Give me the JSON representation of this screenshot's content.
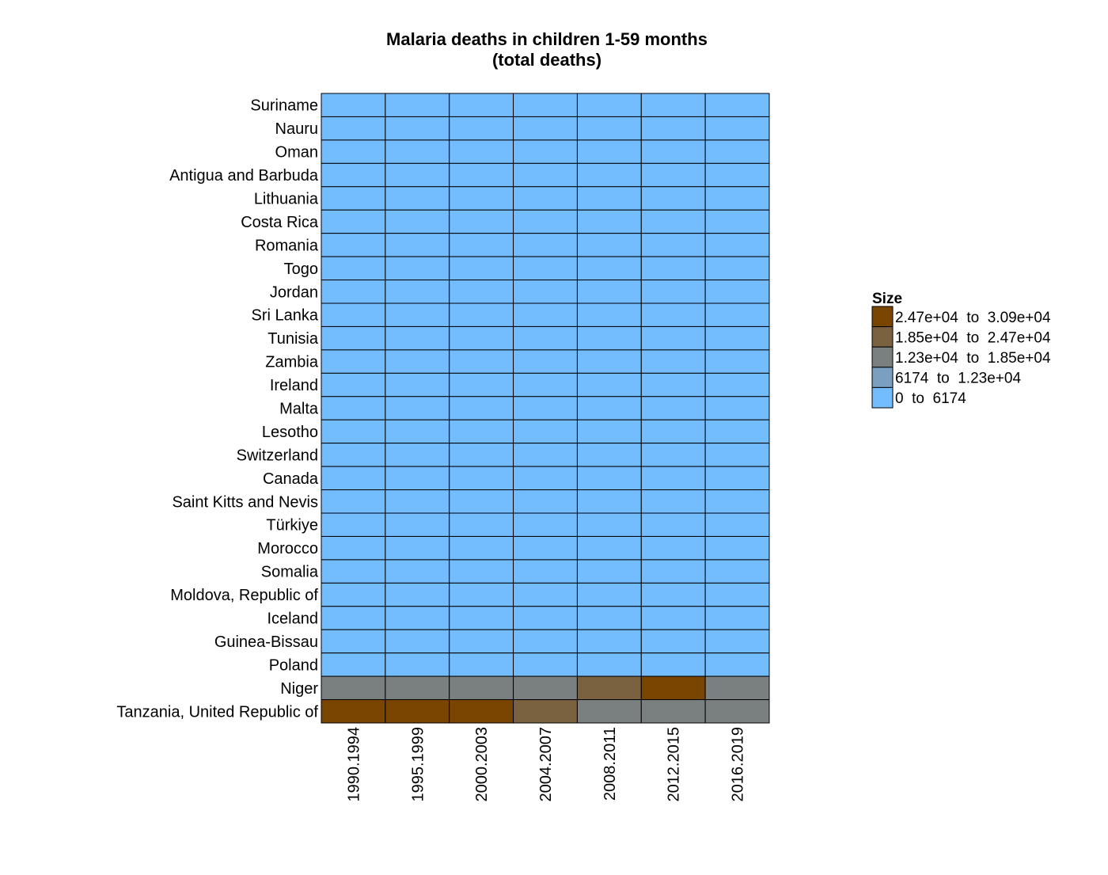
{
  "chart_data": {
    "type": "heatmap",
    "title": "Malaria deaths in children 1-59 months",
    "subtitle": "(total deaths)",
    "columns": [
      "1990.1994",
      "1995.1999",
      "2000.2003",
      "2004.2007",
      "2008.2011",
      "2012.2015",
      "2016.2019"
    ],
    "rows": [
      "Suriname",
      "Nauru",
      "Oman",
      "Antigua and Barbuda",
      "Lithuania",
      "Costa Rica",
      "Romania",
      "Togo",
      "Jordan",
      "Sri Lanka",
      "Tunisia",
      "Zambia",
      "Ireland",
      "Malta",
      "Lesotho",
      "Switzerland",
      "Canada",
      "Saint Kitts and Nevis",
      "Türkiye",
      "Morocco",
      "Somalia",
      "Moldova, Republic of",
      "Iceland",
      "Guinea-Bissau",
      "Poland",
      "Niger",
      "Tanzania, United Republic of"
    ],
    "cell_bins": [
      [
        0,
        0,
        0,
        0,
        0,
        0,
        0
      ],
      [
        0,
        0,
        0,
        0,
        0,
        0,
        0
      ],
      [
        0,
        0,
        0,
        0,
        0,
        0,
        0
      ],
      [
        0,
        0,
        0,
        0,
        0,
        0,
        0
      ],
      [
        0,
        0,
        0,
        0,
        0,
        0,
        0
      ],
      [
        0,
        0,
        0,
        0,
        0,
        0,
        0
      ],
      [
        0,
        0,
        0,
        0,
        0,
        0,
        0
      ],
      [
        0,
        0,
        0,
        0,
        0,
        0,
        0
      ],
      [
        0,
        0,
        0,
        0,
        0,
        0,
        0
      ],
      [
        0,
        0,
        0,
        0,
        0,
        0,
        0
      ],
      [
        0,
        0,
        0,
        0,
        0,
        0,
        0
      ],
      [
        0,
        0,
        0,
        0,
        0,
        0,
        0
      ],
      [
        0,
        0,
        0,
        0,
        0,
        0,
        0
      ],
      [
        0,
        0,
        0,
        0,
        0,
        0,
        0
      ],
      [
        0,
        0,
        0,
        0,
        0,
        0,
        0
      ],
      [
        0,
        0,
        0,
        0,
        0,
        0,
        0
      ],
      [
        0,
        0,
        0,
        0,
        0,
        0,
        0
      ],
      [
        0,
        0,
        0,
        0,
        0,
        0,
        0
      ],
      [
        0,
        0,
        0,
        0,
        0,
        0,
        0
      ],
      [
        0,
        0,
        0,
        0,
        0,
        0,
        0
      ],
      [
        0,
        0,
        0,
        0,
        0,
        0,
        0
      ],
      [
        0,
        0,
        0,
        0,
        0,
        0,
        0
      ],
      [
        0,
        0,
        0,
        0,
        0,
        0,
        0
      ],
      [
        0,
        0,
        0,
        0,
        0,
        0,
        0
      ],
      [
        0,
        0,
        0,
        0,
        0,
        0,
        0
      ],
      [
        2,
        2,
        2,
        2,
        3,
        4,
        2
      ],
      [
        4,
        4,
        4,
        3,
        2,
        2,
        2
      ]
    ],
    "legend": {
      "title": "Size",
      "placement": "right",
      "bins": [
        {
          "label": "2.47e+04  to  3.09e+04",
          "color": "#7a4500"
        },
        {
          "label": "1.85e+04  to  2.47e+04",
          "color": "#7a6240"
        },
        {
          "label": "1.23e+04  to  1.85e+04",
          "color": "#7a8080"
        },
        {
          "label": "6174  to  1.23e+04",
          "color": "#7a9fc0"
        },
        {
          "label": "0  to  6174",
          "color": "#73bdff"
        }
      ]
    },
    "bin_colors": [
      "#73bdff",
      "#7a9fc0",
      "#7a8080",
      "#7a6240",
      "#7a4500"
    ]
  }
}
